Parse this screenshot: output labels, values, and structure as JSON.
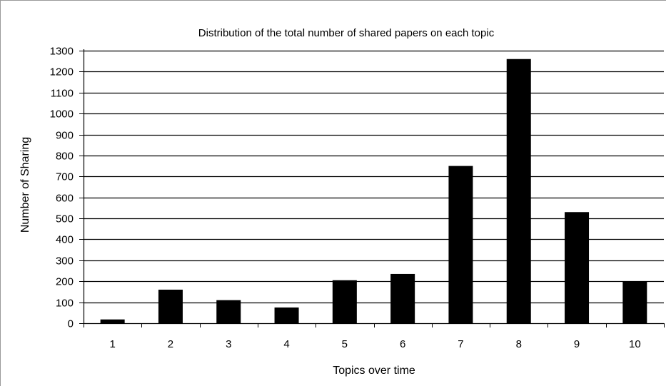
{
  "chart_data": {
    "type": "bar",
    "title": "Distribution of the total number of shared papers on each topic",
    "xlabel": "Topics over time",
    "ylabel": "Number of Sharing",
    "categories": [
      "1",
      "2",
      "3",
      "4",
      "5",
      "6",
      "7",
      "8",
      "9",
      "10"
    ],
    "values": [
      18,
      160,
      110,
      75,
      205,
      235,
      750,
      1260,
      530,
      200
    ],
    "ylim": [
      0,
      1300
    ],
    "yticks": [
      0,
      100,
      200,
      300,
      400,
      500,
      600,
      700,
      800,
      900,
      1000,
      1100,
      1200,
      1300
    ],
    "grid": true,
    "legend": "none",
    "bar_color": "#000000",
    "grid_color": "#000000"
  }
}
